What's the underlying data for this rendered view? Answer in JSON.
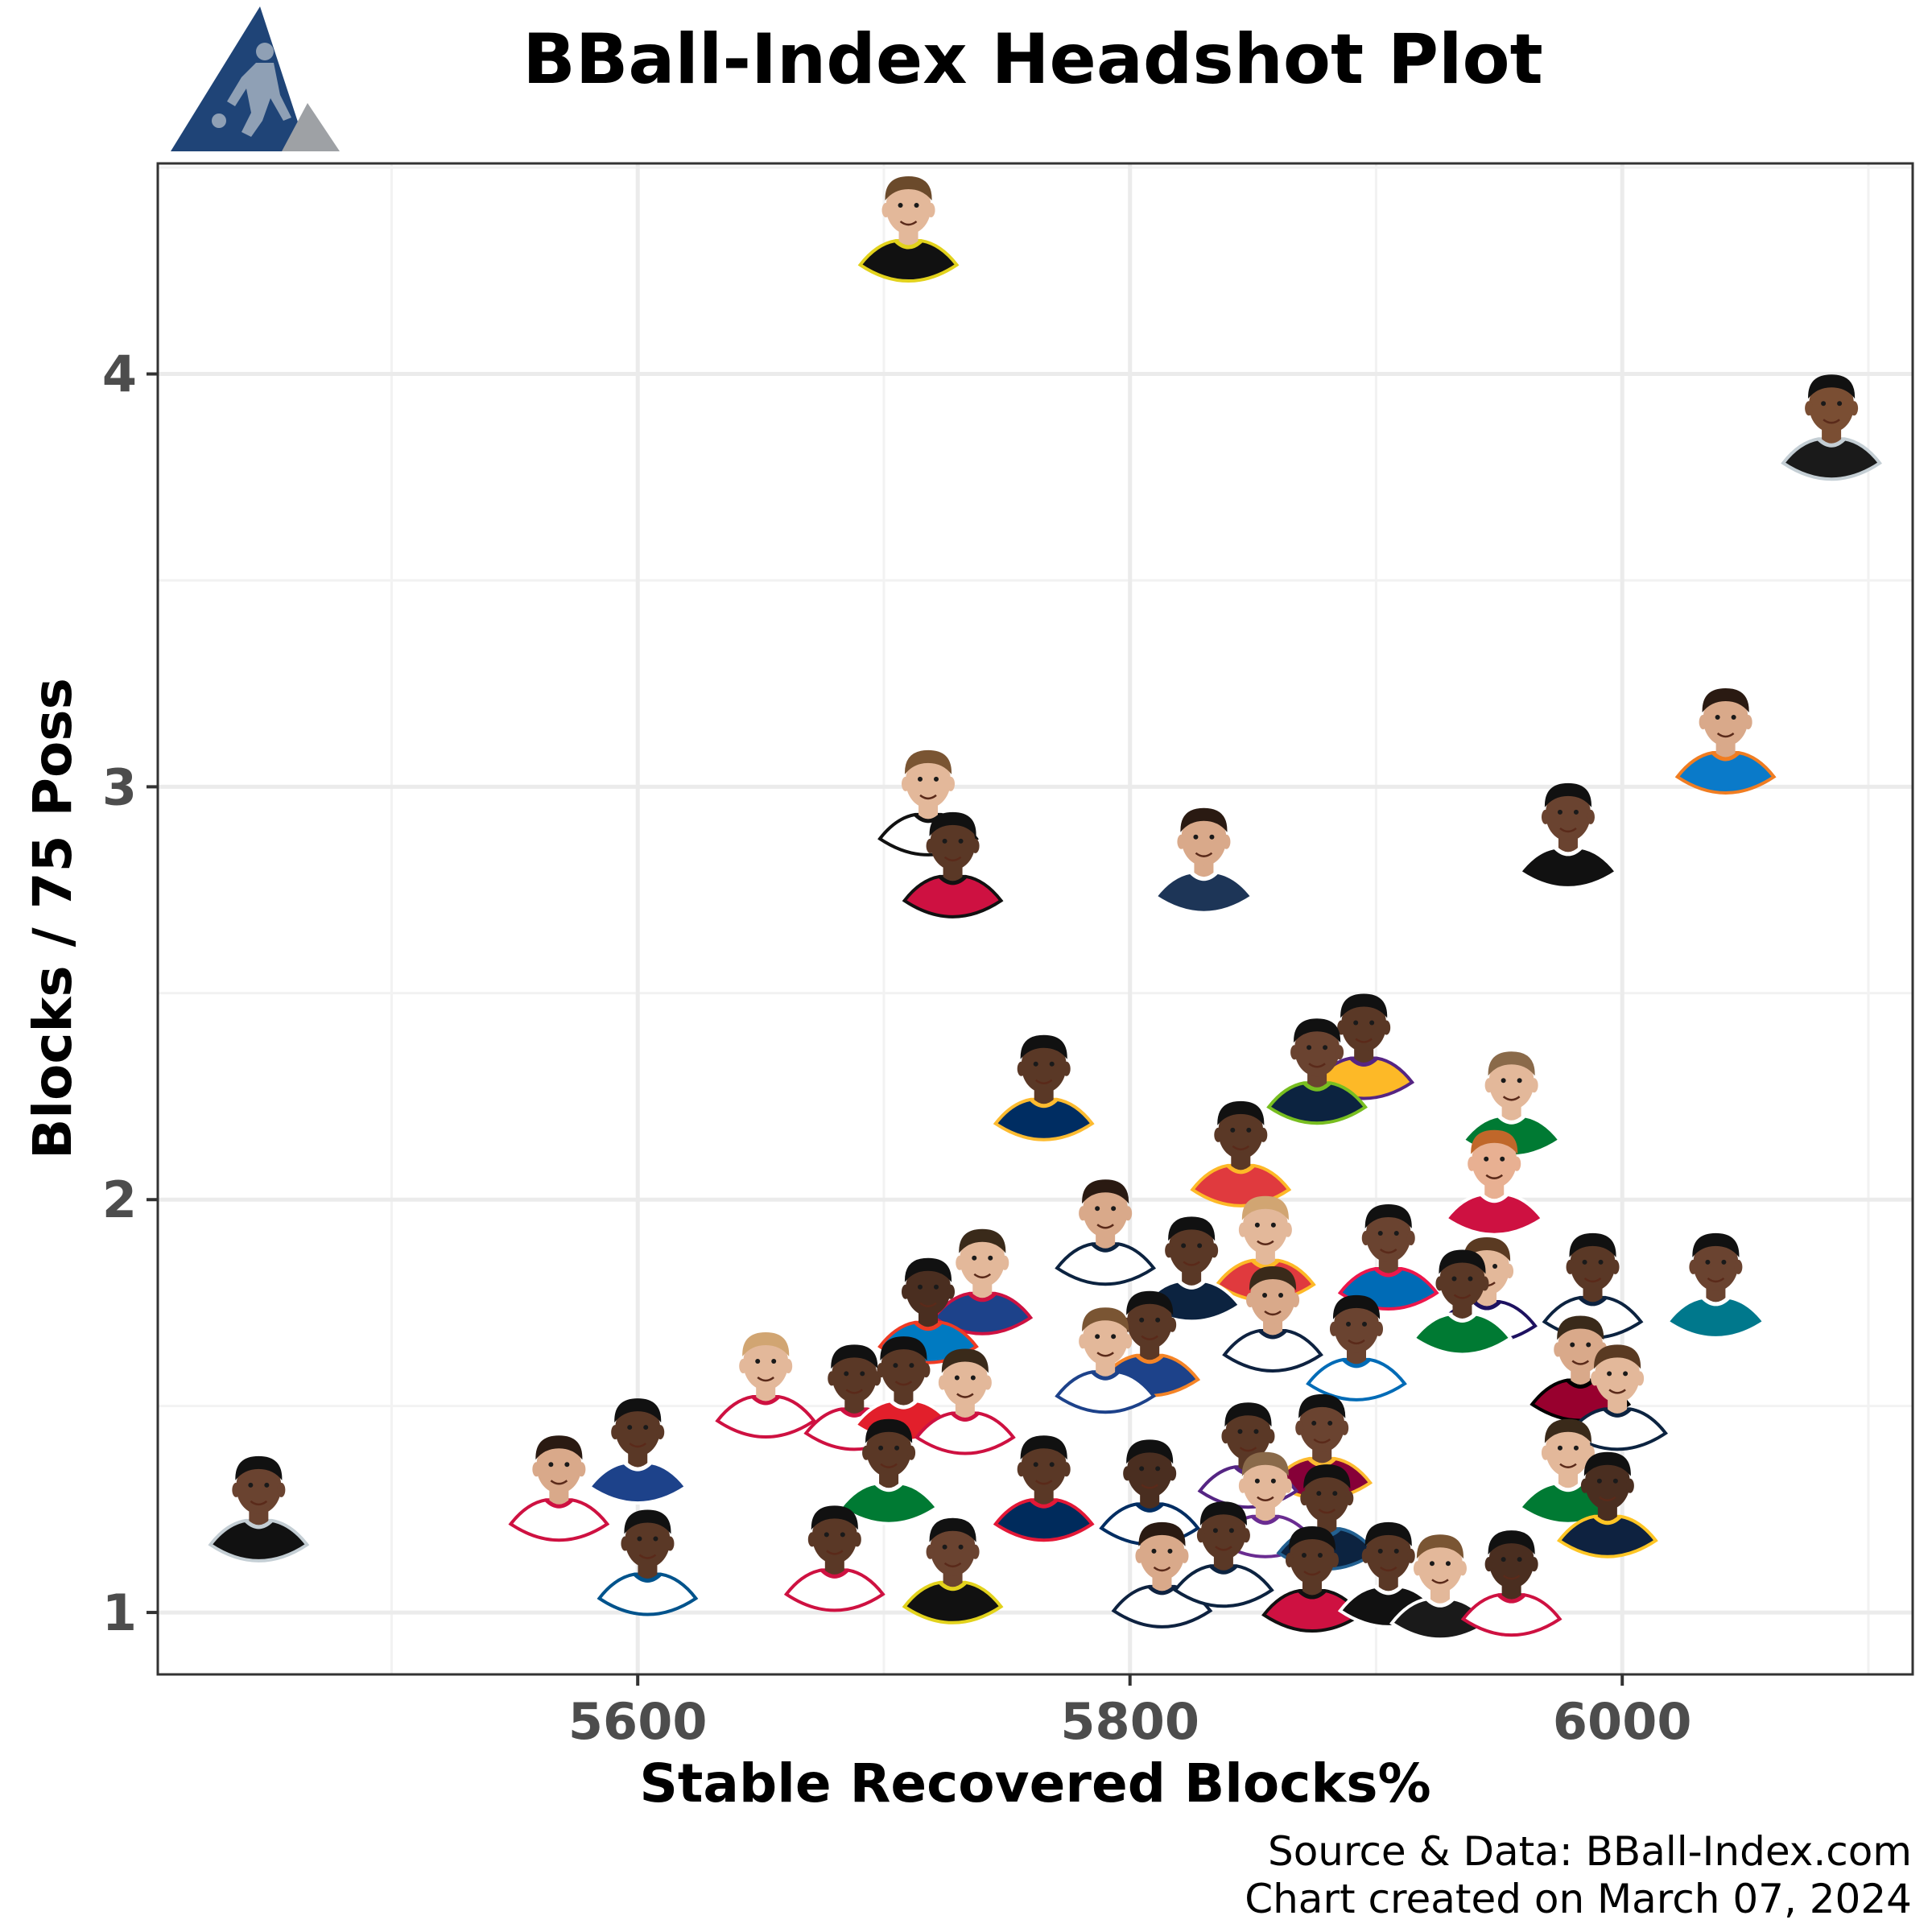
{
  "title": "BBall-Index Headshot Plot",
  "caption_source": "Source & Data: BBall-Index.com",
  "caption_date": "Chart created on March 07, 2024",
  "logo": {
    "name": "bball-index-logo",
    "colors": {
      "primary": "#1f4477",
      "secondary": "#9ea1a5",
      "silhouette": "#8fa0b5"
    }
  },
  "chart_data": {
    "type": "scatter",
    "title": "BBall-Index Headshot Plot",
    "xlabel": "Stable Recovered Blocks%",
    "ylabel": "Blocks / 75 Poss",
    "xlim": [
      5405,
      6118
    ],
    "ylim": [
      0.85,
      4.51
    ],
    "xticks": [
      5600,
      5800,
      6000
    ],
    "yticks": [
      1,
      2,
      3,
      4
    ],
    "xtick_labels": [
      "5600",
      "5800",
      "6000"
    ],
    "ytick_labels": [
      "1",
      "2",
      "3",
      "4"
    ],
    "grid": true,
    "marker": "player-headshot",
    "points": [
      {
        "x": 5710,
        "y": 4.35,
        "jersey": "#111111",
        "trim": "#e2d21c",
        "skin": "#e3b89a",
        "hair": "#6b4a2b"
      },
      {
        "x": 6085,
        "y": 3.87,
        "jersey": "#1a1a1a",
        "trim": "#c4ced4",
        "skin": "#7a4e33",
        "hair": "#111111"
      },
      {
        "x": 6042,
        "y": 3.11,
        "jersey": "#0a7ac9",
        "trim": "#f07d22",
        "skin": "#d9a98a",
        "hair": "#2a1a12"
      },
      {
        "x": 5978,
        "y": 2.88,
        "jersey": "#111111",
        "trim": "#ffffff",
        "skin": "#6a4330",
        "hair": "#111111"
      },
      {
        "x": 5718,
        "y": 2.96,
        "jersey": "#ffffff",
        "trim": "#111111",
        "skin": "#e3b89a",
        "hair": "#7a5533"
      },
      {
        "x": 5728,
        "y": 2.81,
        "jersey": "#ce1141",
        "trim": "#111111",
        "skin": "#5a3826",
        "hair": "#111111"
      },
      {
        "x": 5830,
        "y": 2.82,
        "jersey": "#1d3557",
        "trim": "#ffffff",
        "skin": "#d9a98a",
        "hair": "#2a1a12"
      },
      {
        "x": 5895,
        "y": 2.37,
        "jersey": "#fdb927",
        "trim": "#552583",
        "skin": "#5a3826",
        "hair": "#111111"
      },
      {
        "x": 5876,
        "y": 2.31,
        "jersey": "#0c2340",
        "trim": "#78be20",
        "skin": "#6a4330",
        "hair": "#111111"
      },
      {
        "x": 5765,
        "y": 2.27,
        "jersey": "#002d62",
        "trim": "#fdbb30",
        "skin": "#5a3826",
        "hair": "#111111"
      },
      {
        "x": 5955,
        "y": 2.23,
        "jersey": "#007a33",
        "trim": "#ffffff",
        "skin": "#e3b89a",
        "hair": "#8a6a4a"
      },
      {
        "x": 5845,
        "y": 2.11,
        "jersey": "#e03a3e",
        "trim": "#fdb927",
        "skin": "#5a3826",
        "hair": "#111111"
      },
      {
        "x": 5948,
        "y": 2.04,
        "jersey": "#ce1141",
        "trim": "#ffffff",
        "skin": "#e8b092",
        "hair": "#c0672a"
      },
      {
        "x": 5790,
        "y": 1.92,
        "jersey": "#ffffff",
        "trim": "#0c2340",
        "skin": "#d9a98a",
        "hair": "#2a1a12"
      },
      {
        "x": 5855,
        "y": 1.88,
        "jersey": "#e03a3e",
        "trim": "#fdb927",
        "skin": "#e3b89a",
        "hair": "#d1a572"
      },
      {
        "x": 5905,
        "y": 1.86,
        "jersey": "#006bb6",
        "trim": "#ed174c",
        "skin": "#6a4330",
        "hair": "#111111"
      },
      {
        "x": 5825,
        "y": 1.83,
        "jersey": "#0c2340",
        "trim": "#ffffff",
        "skin": "#5a3826",
        "hair": "#111111"
      },
      {
        "x": 5740,
        "y": 1.8,
        "jersey": "#1d428a",
        "trim": "#ce1141",
        "skin": "#e3b89a",
        "hair": "#3a2a1a"
      },
      {
        "x": 5988,
        "y": 1.79,
        "jersey": "#ffffff",
        "trim": "#0c2340",
        "skin": "#5a3826",
        "hair": "#111111"
      },
      {
        "x": 6038,
        "y": 1.79,
        "jersey": "#00788c",
        "trim": "#ffffff",
        "skin": "#6a4330",
        "hair": "#111111"
      },
      {
        "x": 5945,
        "y": 1.78,
        "jersey": "#ffffff",
        "trim": "#1d1160",
        "skin": "#e3b89a",
        "hair": "#5a3a22"
      },
      {
        "x": 5935,
        "y": 1.75,
        "jersey": "#007a33",
        "trim": "#ffffff",
        "skin": "#5a3826",
        "hair": "#111111"
      },
      {
        "x": 5718,
        "y": 1.73,
        "jersey": "#007ac1",
        "trim": "#ef3b24",
        "skin": "#4a2e20",
        "hair": "#111111"
      },
      {
        "x": 5858,
        "y": 1.71,
        "jersey": "#ffffff",
        "trim": "#0e2240",
        "skin": "#d9a98a",
        "hair": "#3a2a1a"
      },
      {
        "x": 5808,
        "y": 1.65,
        "jersey": "#1d428a",
        "trim": "#f58426",
        "skin": "#5a3826",
        "hair": "#111111"
      },
      {
        "x": 5892,
        "y": 1.64,
        "jersey": "#ffffff",
        "trim": "#006bb6",
        "skin": "#6a4330",
        "hair": "#111111"
      },
      {
        "x": 5983,
        "y": 1.59,
        "jersey": "#98002e",
        "trim": "#000000",
        "skin": "#d9a98a",
        "hair": "#3a2a1a"
      },
      {
        "x": 5790,
        "y": 1.61,
        "jersey": "#ffffff",
        "trim": "#1d428a",
        "skin": "#e3b89a",
        "hair": "#7a5533"
      },
      {
        "x": 5652,
        "y": 1.55,
        "jersey": "#ffffff",
        "trim": "#ce1141",
        "skin": "#e3b89a",
        "hair": "#d1a572"
      },
      {
        "x": 5688,
        "y": 1.52,
        "jersey": "#ffffff",
        "trim": "#ce1141",
        "skin": "#5a3826",
        "hair": "#111111"
      },
      {
        "x": 5708,
        "y": 1.54,
        "jersey": "#e21f2b",
        "trim": "#ffffff",
        "skin": "#5a3826",
        "hair": "#111111"
      },
      {
        "x": 5733,
        "y": 1.51,
        "jersey": "#ffffff",
        "trim": "#ce1141",
        "skin": "#e3b89a",
        "hair": "#3a2a1a"
      },
      {
        "x": 5998,
        "y": 1.52,
        "jersey": "#ffffff",
        "trim": "#0c2340",
        "skin": "#e3b89a",
        "hair": "#5a3a22"
      },
      {
        "x": 5600,
        "y": 1.39,
        "jersey": "#1d428a",
        "trim": "#ffffff",
        "skin": "#5a3826",
        "hair": "#111111"
      },
      {
        "x": 5878,
        "y": 1.4,
        "jersey": "#860038",
        "trim": "#fdbb30",
        "skin": "#6a4330",
        "hair": "#111111"
      },
      {
        "x": 5848,
        "y": 1.38,
        "jersey": "#ffffff",
        "trim": "#552583",
        "skin": "#5a3826",
        "hair": "#111111"
      },
      {
        "x": 5978,
        "y": 1.34,
        "jersey": "#007a33",
        "trim": "#ffffff",
        "skin": "#e3b89a",
        "hair": "#3a2a1a"
      },
      {
        "x": 5702,
        "y": 1.34,
        "jersey": "#007a33",
        "trim": "#ffffff",
        "skin": "#5a3826",
        "hair": "#111111"
      },
      {
        "x": 5568,
        "y": 1.3,
        "jersey": "#ffffff",
        "trim": "#ce1141",
        "skin": "#d9a98a",
        "hair": "#2a1a12"
      },
      {
        "x": 5446,
        "y": 1.25,
        "jersey": "#111111",
        "trim": "#c4ced4",
        "skin": "#6a4330",
        "hair": "#111111"
      },
      {
        "x": 5994,
        "y": 1.26,
        "jersey": "#0e2240",
        "trim": "#fec524",
        "skin": "#4a2e20",
        "hair": "#111111"
      },
      {
        "x": 5765,
        "y": 1.3,
        "jersey": "#002b5c",
        "trim": "#e31837",
        "skin": "#5a3826",
        "hair": "#111111"
      },
      {
        "x": 5808,
        "y": 1.29,
        "jersey": "#ffffff",
        "trim": "#002d62",
        "skin": "#4a2e20",
        "hair": "#111111"
      },
      {
        "x": 5855,
        "y": 1.26,
        "jersey": "#ffffff",
        "trim": "#6a2c91",
        "skin": "#e3b89a",
        "hair": "#8a6a4a"
      },
      {
        "x": 5880,
        "y": 1.23,
        "jersey": "#0c2340",
        "trim": "#236192",
        "skin": "#5a3826",
        "hair": "#111111"
      },
      {
        "x": 5604,
        "y": 1.12,
        "jersey": "#ffffff",
        "trim": "#00538c",
        "skin": "#5a3826",
        "hair": "#111111"
      },
      {
        "x": 5680,
        "y": 1.13,
        "jersey": "#ffffff",
        "trim": "#ce1141",
        "skin": "#5a3826",
        "hair": "#111111"
      },
      {
        "x": 5728,
        "y": 1.1,
        "jersey": "#111111",
        "trim": "#e2d21c",
        "skin": "#6a4330",
        "hair": "#111111"
      },
      {
        "x": 5813,
        "y": 1.09,
        "jersey": "#ffffff",
        "trim": "#0e2240",
        "skin": "#d9a98a",
        "hair": "#2a1a12"
      },
      {
        "x": 5838,
        "y": 1.14,
        "jersey": "#ffffff",
        "trim": "#0c2340",
        "skin": "#5a3826",
        "hair": "#111111"
      },
      {
        "x": 5874,
        "y": 1.08,
        "jersey": "#ce1141",
        "trim": "#111111",
        "skin": "#5a3826",
        "hair": "#111111"
      },
      {
        "x": 5905,
        "y": 1.09,
        "jersey": "#111111",
        "trim": "#ffffff",
        "skin": "#5a3826",
        "hair": "#111111"
      },
      {
        "x": 5926,
        "y": 1.06,
        "jersey": "#1a1a1a",
        "trim": "#ffffff",
        "skin": "#e3b89a",
        "hair": "#7a5533"
      },
      {
        "x": 5955,
        "y": 1.07,
        "jersey": "#ffffff",
        "trim": "#ce1141",
        "skin": "#4a2e20",
        "hair": "#111111"
      }
    ]
  }
}
